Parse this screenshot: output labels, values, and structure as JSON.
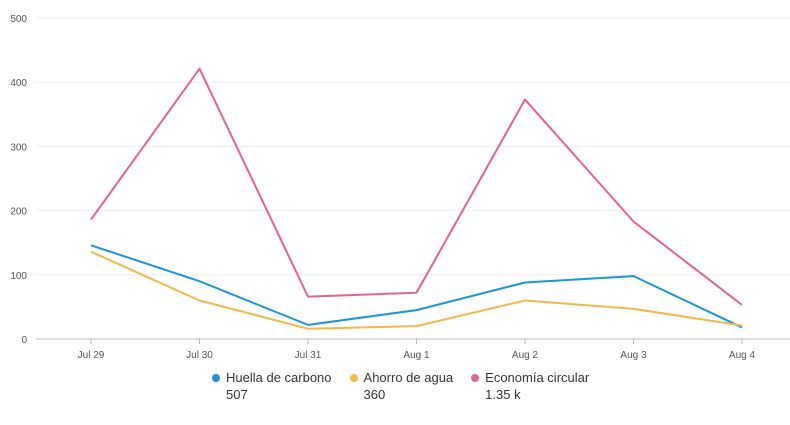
{
  "chart_data": {
    "type": "line",
    "title": "",
    "xlabel": "",
    "ylabel": "",
    "ylim": [
      0,
      500
    ],
    "yticks": [
      "0",
      "100",
      "200",
      "300",
      "400",
      "500"
    ],
    "grid": true,
    "legend_position": "bottom",
    "categories": [
      "Jul 29",
      "Jul 30",
      "Jul 31",
      "Aug 1",
      "Aug 2",
      "Aug 3",
      "Aug 4"
    ],
    "series": [
      {
        "name": "Huella de carbono",
        "total": "507",
        "color": "#1a96d4",
        "values": [
          146,
          90,
          22,
          45,
          88,
          98,
          18
        ]
      },
      {
        "name": "Ahorro de agua",
        "total": "360",
        "color": "#f0b94a",
        "values": [
          136,
          60,
          16,
          20,
          60,
          47,
          21
        ]
      },
      {
        "name": "Economía circular",
        "total": "1.35 k",
        "color": "#e0648f",
        "values": [
          186,
          421,
          66,
          72,
          373,
          183,
          53
        ]
      }
    ]
  }
}
